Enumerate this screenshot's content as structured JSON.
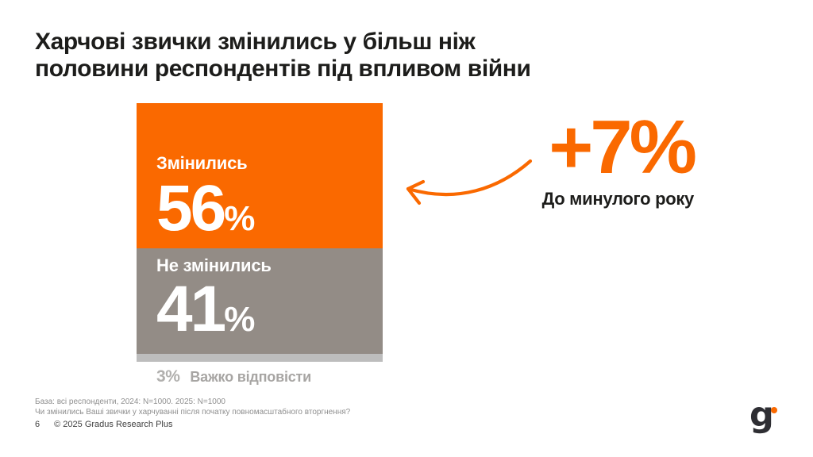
{
  "slide": {
    "title_line1": "Харчові звички змінились у більш ніж",
    "title_line2": "половини респондентів під впливом війни"
  },
  "chart_data": {
    "type": "bar",
    "subtype": "stacked-single-column",
    "title": "Харчові звички змінились у більш ніж половини респондентів під впливом війни",
    "categories": [
      "Змінились",
      "Не змінились",
      "Важко відповісти"
    ],
    "values": [
      56,
      41,
      3
    ],
    "unit": "%",
    "colors": [
      "#FA6900",
      "#938C86",
      "#BDBDBD"
    ],
    "legend_position": "inside-segments",
    "annotation": {
      "value": "+7%",
      "label": "До минулого року",
      "color": "#FA6900",
      "points_to": "Змінились"
    }
  },
  "footnote": {
    "line1": "База: всі респонденти, 2024: N=1000. 2025: N=1000",
    "line2": "Чи змінились Ваші звички у харчуванні після початку повномасштабного вторгнення?"
  },
  "footer": {
    "page_number": "6",
    "copyright": "© 2025 Gradus Research Plus"
  },
  "logo": {
    "letter": "g"
  }
}
